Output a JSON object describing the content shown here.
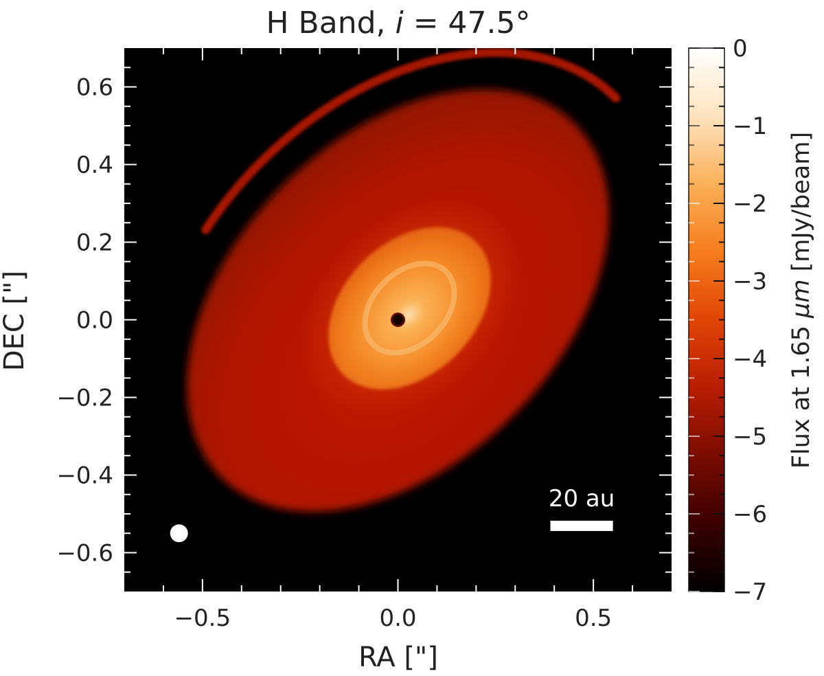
{
  "chart_data": {
    "type": "heatmap",
    "title_prefix": "H Band, ",
    "title_var": "i",
    "title_suffix": " = 47.5°",
    "xlabel": "RA [\"]",
    "ylabel": "DEC [\"]",
    "xlim": [
      -0.7,
      0.7
    ],
    "ylim": [
      -0.7,
      0.7
    ],
    "xticks": [
      -0.5,
      0.0,
      0.5
    ],
    "xtick_labels": [
      "−0.5",
      "0.0",
      "0.5"
    ],
    "yticks": [
      0.6,
      0.4,
      0.2,
      0.0,
      -0.2,
      -0.4,
      -0.6
    ],
    "ytick_labels": [
      "0.6",
      "0.4",
      "0.2",
      "0.0",
      "−0.2",
      "−0.4",
      "−0.6"
    ],
    "colorbar": {
      "label_prefix": "Flux at 1.65 ",
      "label_unit": "μm",
      "label_suffix": " [mJy/beam]",
      "range": [
        -7,
        0
      ],
      "ticks": [
        0,
        -1,
        -2,
        -3,
        -4,
        -5,
        -6,
        -7
      ],
      "tick_labels": [
        "0",
        "−1",
        "−2",
        "−3",
        "−4",
        "−5",
        "−6",
        "−7"
      ],
      "colormap": [
        "#000000",
        "#3a0000",
        "#7a0c00",
        "#b81d02",
        "#e04506",
        "#f57d1c",
        "#fbb05a",
        "#fde3be",
        "#ffffff"
      ]
    },
    "features": {
      "inclination_deg": 47.5,
      "central_star": {
        "x": 0.0,
        "y": 0.0
      },
      "inner_disk": {
        "center": [
          0.03,
          0.03
        ],
        "semi_major": 0.24,
        "semi_minor": 0.17,
        "pa_deg": 45,
        "peak_flux": -1.2
      },
      "outer_disk": {
        "center": [
          0.0,
          0.05
        ],
        "semi_major": 0.64,
        "semi_minor": 0.42,
        "pa_deg": 45,
        "flux": -3.8
      },
      "outer_arc": {
        "center": [
          0.02,
          0.03
        ],
        "semi_major": 0.76,
        "semi_minor": 0.53,
        "pa_deg": 45,
        "flux": -4.1
      }
    },
    "beam": {
      "x": -0.56,
      "y": -0.55
    },
    "scale_bar": {
      "label": "20 au",
      "x_start": 0.39,
      "x_end": 0.55,
      "y": -0.53
    }
  }
}
